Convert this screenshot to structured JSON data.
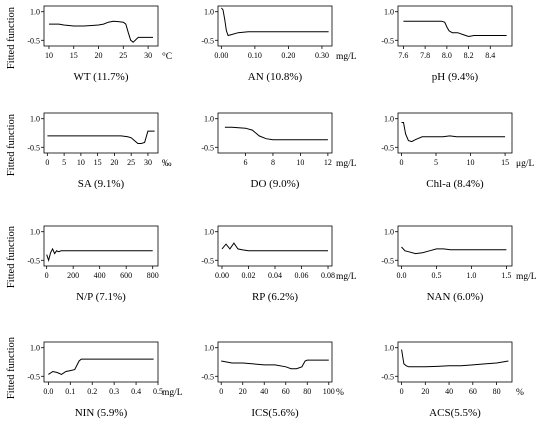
{
  "y_axis_label": "Fitted function",
  "chart_data": [
    {
      "type": "line",
      "title": "WT (11.7%)",
      "xunit": "°C",
      "xlim": [
        9,
        32
      ],
      "ylim": [
        -0.8,
        1.3
      ],
      "xticks": [
        10,
        15,
        20,
        25,
        30
      ],
      "xtick_labels": [
        "10",
        "15",
        "20",
        "25",
        "30"
      ],
      "yticks": [
        -0.5,
        1.0
      ],
      "ytick_labels": [
        "-0.5",
        "1.0"
      ],
      "series": [
        {
          "x": [
            10,
            12,
            13,
            15,
            17,
            19,
            20,
            21,
            22,
            23,
            24,
            25,
            25.5,
            26,
            26.5,
            27,
            28,
            29,
            30,
            31
          ],
          "y": [
            0.35,
            0.35,
            0.3,
            0.25,
            0.25,
            0.28,
            0.3,
            0.35,
            0.45,
            0.5,
            0.48,
            0.45,
            0.35,
            -0.1,
            -0.5,
            -0.6,
            -0.35,
            -0.35,
            -0.35,
            -0.35
          ]
        }
      ]
    },
    {
      "type": "line",
      "title": "AN (10.8%)",
      "xunit": "mg/L",
      "xlim": [
        -0.01,
        0.33
      ],
      "ylim": [
        -0.8,
        1.3
      ],
      "xticks": [
        0,
        0.1,
        0.2,
        0.3
      ],
      "xtick_labels": [
        "0.00",
        "0.10",
        "0.20",
        "0.30"
      ],
      "yticks": [
        -0.5,
        1.0
      ],
      "ytick_labels": [
        "-0.5",
        "1.0"
      ],
      "series": [
        {
          "x": [
            0,
            0.005,
            0.01,
            0.015,
            0.02,
            0.03,
            0.05,
            0.08,
            0.1,
            0.15,
            0.2,
            0.25,
            0.3,
            0.32
          ],
          "y": [
            1.2,
            1.1,
            0.6,
            0.0,
            -0.25,
            -0.2,
            -0.1,
            -0.05,
            -0.05,
            -0.05,
            -0.05,
            -0.05,
            -0.05,
            -0.05
          ]
        }
      ]
    },
    {
      "type": "line",
      "title": "pH (9.4%)",
      "xunit": "",
      "xlim": [
        7.55,
        8.6
      ],
      "ylim": [
        -0.8,
        1.3
      ],
      "xticks": [
        7.6,
        7.8,
        8.0,
        8.2,
        8.4
      ],
      "xtick_labels": [
        "7.6",
        "7.8",
        "8.0",
        "8.2",
        "8.4"
      ],
      "yticks": [
        -0.5,
        1.0
      ],
      "ytick_labels": [
        "-0.5",
        "1.0"
      ],
      "series": [
        {
          "x": [
            7.6,
            7.7,
            7.8,
            7.9,
            7.95,
            7.98,
            8.0,
            8.02,
            8.05,
            8.1,
            8.15,
            8.2,
            8.25,
            8.3,
            8.4,
            8.55
          ],
          "y": [
            0.5,
            0.5,
            0.5,
            0.5,
            0.5,
            0.45,
            0.2,
            0.0,
            -0.1,
            -0.1,
            -0.2,
            -0.3,
            -0.25,
            -0.25,
            -0.25,
            -0.25
          ]
        }
      ]
    },
    {
      "type": "line",
      "title": "SA (9.1%)",
      "xunit": "‰",
      "xlim": [
        -1,
        33
      ],
      "ylim": [
        -0.8,
        1.3
      ],
      "xticks": [
        0,
        5,
        10,
        15,
        20,
        25,
        30
      ],
      "xtick_labels": [
        "0",
        "5",
        "10",
        "15",
        "20",
        "25",
        "30"
      ],
      "yticks": [
        -0.5,
        1.0
      ],
      "ytick_labels": [
        "-0.5",
        "1.0"
      ],
      "series": [
        {
          "x": [
            0,
            5,
            10,
            15,
            20,
            22,
            24,
            25,
            26,
            27,
            28,
            29,
            30,
            31,
            32
          ],
          "y": [
            0.1,
            0.1,
            0.1,
            0.1,
            0.1,
            0.1,
            0.05,
            0.0,
            -0.15,
            -0.3,
            -0.3,
            -0.25,
            0.35,
            0.35,
            0.35
          ]
        }
      ]
    },
    {
      "type": "line",
      "title": "DO (9.0%)",
      "xunit": "mg/L",
      "xlim": [
        4,
        12.3
      ],
      "ylim": [
        -0.8,
        1.3
      ],
      "xticks": [
        6,
        8,
        10,
        12
      ],
      "xtick_labels": [
        "6",
        "8",
        "10",
        "12"
      ],
      "yticks": [
        -0.5,
        1.0
      ],
      "ytick_labels": [
        "-0.5",
        "1.0"
      ],
      "series": [
        {
          "x": [
            4.5,
            5,
            6,
            6.5,
            7,
            7.5,
            8,
            9,
            10,
            11,
            12
          ],
          "y": [
            0.55,
            0.55,
            0.5,
            0.4,
            0.1,
            -0.05,
            -0.1,
            -0.1,
            -0.1,
            -0.1,
            -0.1
          ]
        }
      ]
    },
    {
      "type": "line",
      "title": "Chl-a (8.4%)",
      "xunit": "μg/L",
      "xlim": [
        -0.5,
        16
      ],
      "ylim": [
        -0.8,
        1.3
      ],
      "xticks": [
        0,
        5,
        10,
        15
      ],
      "xtick_labels": [
        "0",
        "5",
        "10",
        "15"
      ],
      "yticks": [
        -0.5,
        1.0
      ],
      "ytick_labels": [
        "-0.5",
        "1.0"
      ],
      "series": [
        {
          "x": [
            0,
            0.3,
            0.6,
            1,
            1.5,
            2,
            3,
            4,
            5,
            6,
            7,
            8,
            10,
            12,
            15
          ],
          "y": [
            0.8,
            0.8,
            0.2,
            -0.15,
            -0.2,
            -0.1,
            0.05,
            0.05,
            0.05,
            0.05,
            0.1,
            0.05,
            0.05,
            0.05,
            0.05
          ]
        }
      ]
    },
    {
      "type": "line",
      "title": "N/P (7.1%)",
      "xunit": "",
      "xlim": [
        -20,
        840
      ],
      "ylim": [
        -0.8,
        1.3
      ],
      "xticks": [
        0,
        200,
        400,
        600,
        800
      ],
      "xtick_labels": [
        "0",
        "200",
        "400",
        "600",
        "800"
      ],
      "yticks": [
        -0.5,
        1.0
      ],
      "ytick_labels": [
        "-0.5",
        "1.0"
      ],
      "series": [
        {
          "x": [
            0,
            15,
            30,
            45,
            60,
            75,
            90,
            110,
            150,
            200,
            300,
            400,
            500,
            600,
            700,
            800
          ],
          "y": [
            -0.2,
            -0.5,
            -0.1,
            0.1,
            -0.15,
            0.0,
            -0.05,
            0.0,
            0.0,
            0.0,
            0.0,
            0.0,
            0.0,
            0.0,
            0.0,
            0.0
          ]
        }
      ]
    },
    {
      "type": "line",
      "title": "RP (6.2%)",
      "xunit": "mg/L",
      "xlim": [
        -0.003,
        0.083
      ],
      "ylim": [
        -0.8,
        1.3
      ],
      "xticks": [
        0,
        0.02,
        0.04,
        0.06,
        0.08
      ],
      "xtick_labels": [
        "0.00",
        "0.02",
        "0.04",
        "0.06",
        "0.08"
      ],
      "yticks": [
        -0.5,
        1.0
      ],
      "ytick_labels": [
        "-0.5",
        "1.0"
      ],
      "series": [
        {
          "x": [
            0,
            0.003,
            0.006,
            0.009,
            0.012,
            0.015,
            0.02,
            0.03,
            0.04,
            0.05,
            0.06,
            0.07,
            0.08
          ],
          "y": [
            0.1,
            0.35,
            0.1,
            0.4,
            0.1,
            0.05,
            0.0,
            0.0,
            0.0,
            0.0,
            0.0,
            0.0,
            0.0
          ]
        }
      ]
    },
    {
      "type": "line",
      "title": "NAN (6.0%)",
      "xunit": "mg/L",
      "xlim": [
        -0.05,
        1.58
      ],
      "ylim": [
        -0.8,
        1.3
      ],
      "xticks": [
        0,
        0.5,
        1.0,
        1.5
      ],
      "xtick_labels": [
        "0.0",
        "0.5",
        "1.0",
        "1.5"
      ],
      "yticks": [
        -0.5,
        1.0
      ],
      "ytick_labels": [
        "-0.5",
        "1.0"
      ],
      "series": [
        {
          "x": [
            0,
            0.05,
            0.1,
            0.2,
            0.3,
            0.4,
            0.5,
            0.6,
            0.7,
            0.8,
            1.0,
            1.2,
            1.4,
            1.5
          ],
          "y": [
            0.2,
            0.0,
            -0.05,
            -0.15,
            -0.1,
            0.0,
            0.1,
            0.1,
            0.05,
            0.05,
            0.05,
            0.05,
            0.05,
            0.05
          ]
        }
      ]
    },
    {
      "type": "line",
      "title": "NIN (5.9%)",
      "xunit": "mg/L",
      "xlim": [
        -0.02,
        0.5
      ],
      "ylim": [
        -0.8,
        1.3
      ],
      "xticks": [
        0,
        0.1,
        0.2,
        0.3,
        0.4,
        0.5
      ],
      "xtick_labels": [
        "0.0",
        "0.1",
        "0.2",
        "0.3",
        "0.4",
        "0.5"
      ],
      "yticks": [
        -0.5,
        1.0
      ],
      "ytick_labels": [
        "-0.5",
        "1.0"
      ],
      "series": [
        {
          "x": [
            0,
            0.02,
            0.04,
            0.06,
            0.08,
            0.1,
            0.12,
            0.14,
            0.15,
            0.2,
            0.3,
            0.4,
            0.48
          ],
          "y": [
            -0.4,
            -0.25,
            -0.3,
            -0.4,
            -0.25,
            -0.2,
            -0.15,
            0.3,
            0.4,
            0.4,
            0.4,
            0.4,
            0.4
          ]
        }
      ]
    },
    {
      "type": "line",
      "title": "ICS(5.6%)",
      "xunit": "%",
      "xlim": [
        -3,
        103
      ],
      "ylim": [
        -0.8,
        1.3
      ],
      "xticks": [
        0,
        20,
        40,
        60,
        80,
        100
      ],
      "xtick_labels": [
        "0",
        "20",
        "40",
        "60",
        "80",
        "100"
      ],
      "yticks": [
        -0.5,
        1.0
      ],
      "ytick_labels": [
        "-0.5",
        "1.0"
      ],
      "series": [
        {
          "x": [
            0,
            10,
            20,
            30,
            40,
            50,
            60,
            65,
            70,
            75,
            78,
            80,
            85,
            90,
            95,
            100
          ],
          "y": [
            0.3,
            0.2,
            0.2,
            0.15,
            0.1,
            0.1,
            0.0,
            -0.1,
            -0.1,
            0.0,
            0.3,
            0.35,
            0.35,
            0.35,
            0.35,
            0.35
          ]
        }
      ]
    },
    {
      "type": "line",
      "title": "ACS(5.5%)",
      "xunit": "%",
      "xlim": [
        -3,
        93
      ],
      "ylim": [
        -0.8,
        1.3
      ],
      "xticks": [
        0,
        20,
        40,
        60,
        80
      ],
      "xtick_labels": [
        "0",
        "20",
        "40",
        "60",
        "80"
      ],
      "yticks": [
        -0.5,
        1.0
      ],
      "ytick_labels": [
        "-0.5",
        "1.0"
      ],
      "series": [
        {
          "x": [
            0,
            1,
            2,
            4,
            6,
            10,
            20,
            30,
            40,
            50,
            60,
            70,
            80,
            85,
            90
          ],
          "y": [
            0.9,
            0.5,
            0.15,
            0.05,
            0.0,
            0.0,
            0.0,
            0.02,
            0.05,
            0.05,
            0.1,
            0.15,
            0.2,
            0.25,
            0.3
          ]
        }
      ]
    }
  ]
}
